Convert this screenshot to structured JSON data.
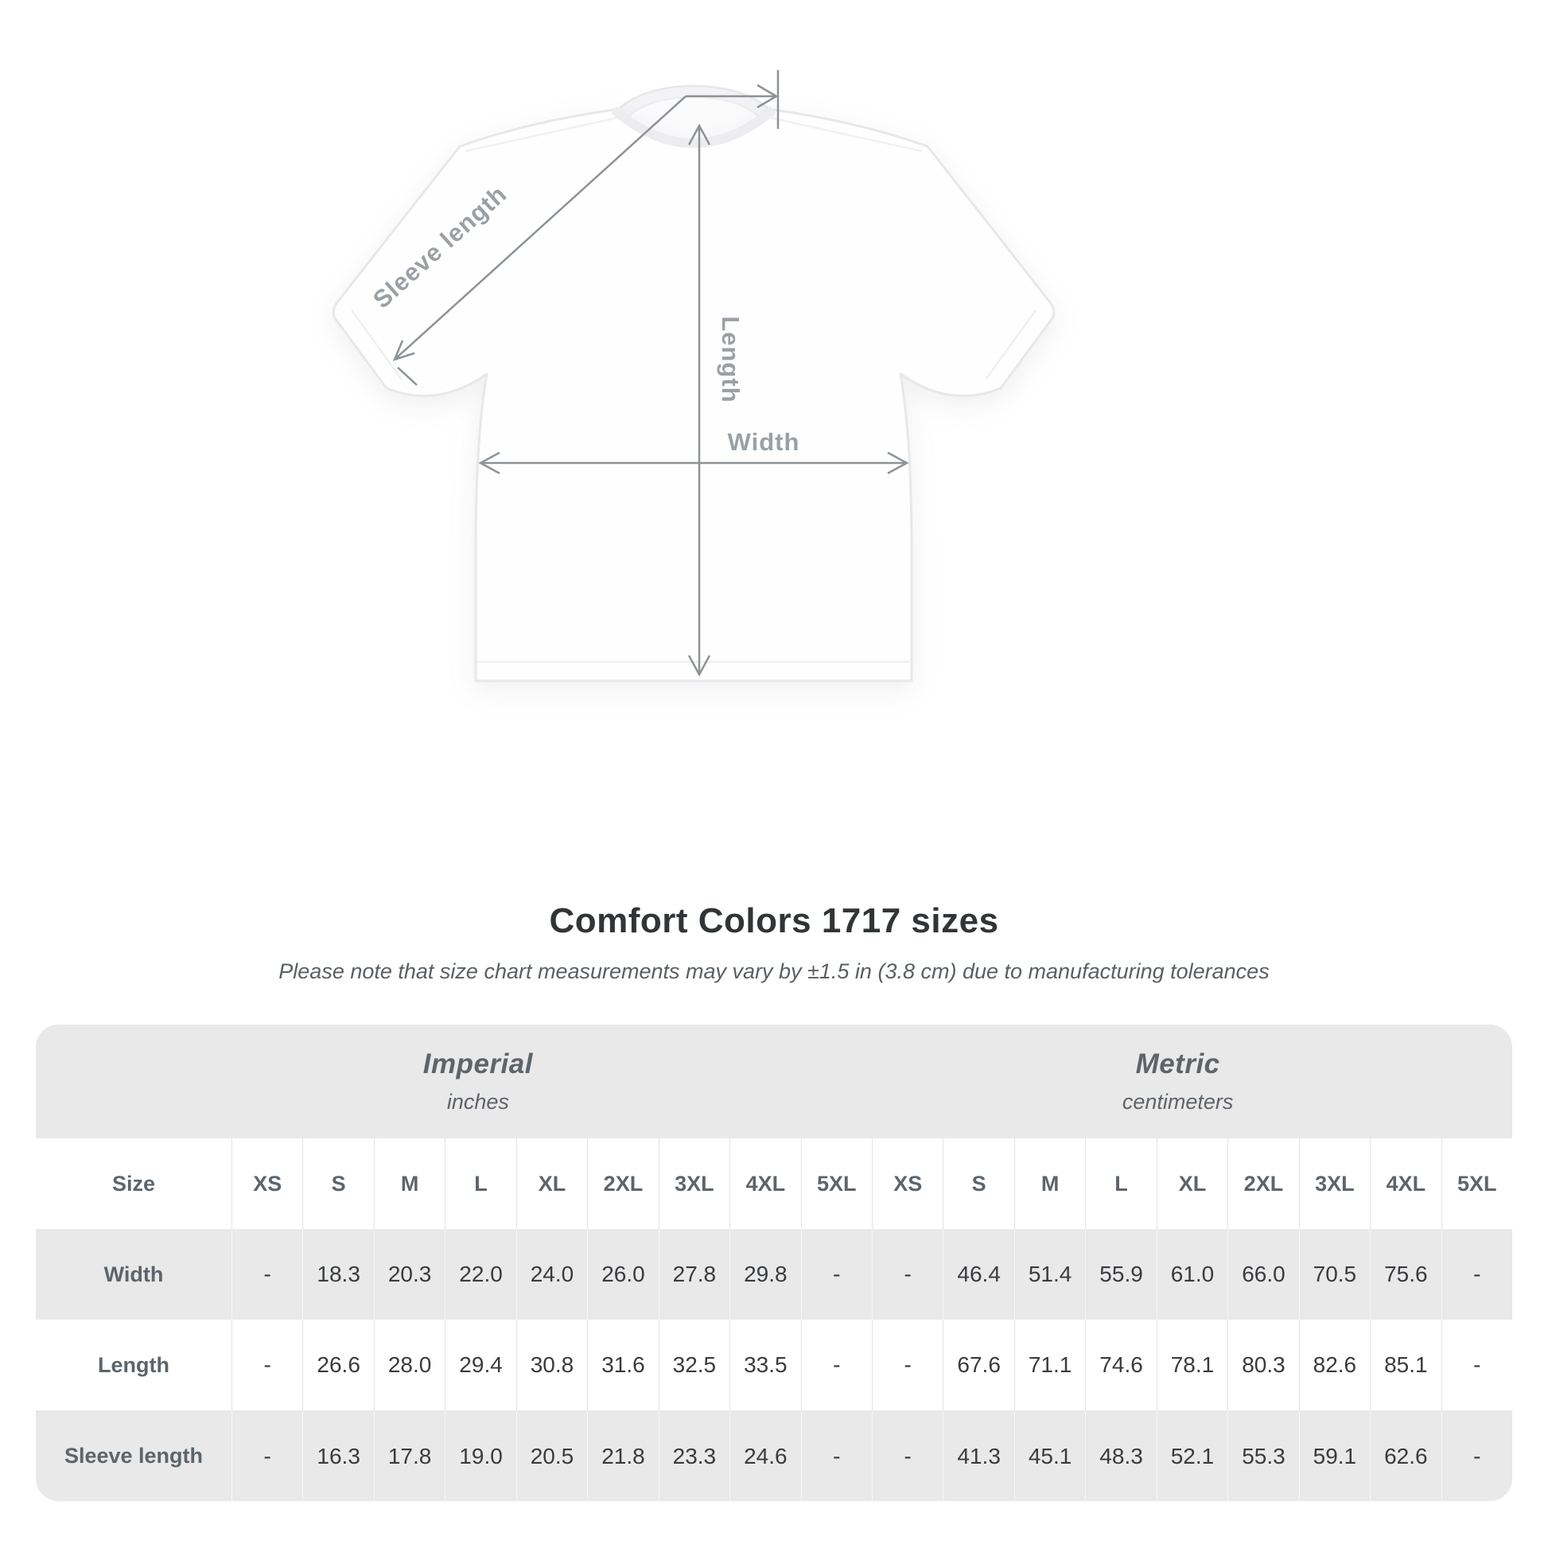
{
  "diagram": {
    "labels": {
      "sleeve": "Sleeve length",
      "length": "Length",
      "width": "Width"
    }
  },
  "title": "Comfort Colors 1717 sizes",
  "subtitle": "Please note that size chart measurements may vary by ±1.5 in (3.8 cm) due to manufacturing tolerances",
  "table": {
    "size_label": "Size",
    "groups": [
      {
        "name": "Imperial",
        "unit": "inches"
      },
      {
        "name": "Metric",
        "unit": "centimeters"
      }
    ],
    "sizes": [
      "XS",
      "S",
      "M",
      "L",
      "XL",
      "2XL",
      "3XL",
      "4XL",
      "5XL"
    ],
    "rows": [
      {
        "label": "Width",
        "imperial": [
          "-",
          "18.3",
          "20.3",
          "22.0",
          "24.0",
          "26.0",
          "27.8",
          "29.8",
          "-"
        ],
        "metric": [
          "-",
          "46.4",
          "51.4",
          "55.9",
          "61.0",
          "66.0",
          "70.5",
          "75.6",
          "-"
        ]
      },
      {
        "label": "Length",
        "imperial": [
          "-",
          "26.6",
          "28.0",
          "29.4",
          "30.8",
          "31.6",
          "32.5",
          "33.5",
          "-"
        ],
        "metric": [
          "-",
          "67.6",
          "71.1",
          "74.6",
          "78.1",
          "80.3",
          "82.6",
          "85.1",
          "-"
        ]
      },
      {
        "label": "Sleeve length",
        "imperial": [
          "-",
          "16.3",
          "17.8",
          "19.0",
          "20.5",
          "21.8",
          "23.3",
          "24.6",
          "-"
        ],
        "metric": [
          "-",
          "41.3",
          "45.1",
          "48.3",
          "52.1",
          "55.3",
          "59.1",
          "62.6",
          "-"
        ]
      }
    ]
  },
  "colors": {
    "table_gray": "#e9e9ea",
    "diagram_line": "#8d9297",
    "diagram_label": "#9aa0a5",
    "title_text": "#323537",
    "value_text": "#393b3d"
  }
}
